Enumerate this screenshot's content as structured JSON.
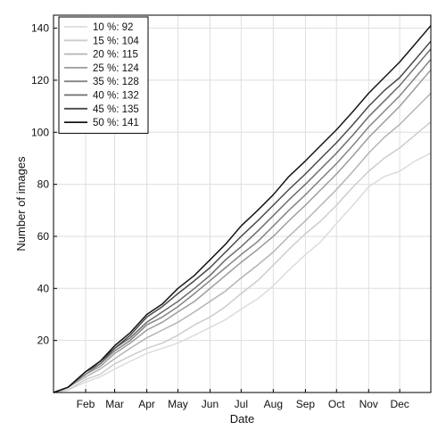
{
  "chart_data": {
    "type": "line",
    "xlabel": "Date",
    "ylabel": "Number of images",
    "x_ticks": [
      "Feb",
      "Mar",
      "Apr",
      "May",
      "Jun",
      "Jul",
      "Aug",
      "Sep",
      "Oct",
      "Nov",
      "Dec"
    ],
    "x_tick_days": [
      32,
      60,
      91,
      121,
      152,
      182,
      213,
      244,
      274,
      305,
      335
    ],
    "xlim": [
      1,
      365
    ],
    "ylim": [
      0,
      145
    ],
    "y_ticks": [
      20,
      40,
      60,
      80,
      100,
      120,
      140
    ],
    "grid": true,
    "legend_position": "top-left",
    "series": [
      {
        "name": "10 %: 92",
        "color": "#dcdcdc",
        "x": [
          1,
          15,
          32,
          46,
          60,
          75,
          91,
          106,
          121,
          137,
          152,
          167,
          182,
          198,
          213,
          228,
          244,
          259,
          274,
          290,
          305,
          320,
          335,
          350,
          365
        ],
        "y": [
          0,
          1,
          4,
          6,
          9,
          12,
          15,
          17,
          19,
          22,
          25,
          28,
          32,
          36,
          41,
          47,
          53,
          58,
          65,
          72,
          79,
          83,
          85,
          89,
          92
        ]
      },
      {
        "name": "15 %: 104",
        "color": "#cccccc",
        "x": [
          1,
          15,
          32,
          46,
          60,
          75,
          91,
          106,
          121,
          137,
          152,
          167,
          182,
          198,
          213,
          228,
          244,
          259,
          274,
          290,
          305,
          320,
          335,
          350,
          365
        ],
        "y": [
          0,
          1,
          5,
          7,
          11,
          14,
          17,
          19,
          22,
          26,
          29,
          33,
          38,
          43,
          49,
          55,
          61,
          66,
          72,
          79,
          85,
          90,
          94,
          99,
          104
        ]
      },
      {
        "name": "20 %: 115",
        "color": "#b4b4b4",
        "x": [
          1,
          15,
          32,
          46,
          60,
          75,
          91,
          106,
          121,
          137,
          152,
          167,
          182,
          198,
          213,
          228,
          244,
          259,
          274,
          290,
          305,
          320,
          335,
          350,
          365
        ],
        "y": [
          0,
          2,
          6,
          9,
          13,
          17,
          21,
          24,
          27,
          31,
          35,
          39,
          44,
          49,
          54,
          60,
          66,
          72,
          78,
          85,
          92,
          98,
          103,
          109,
          115
        ]
      },
      {
        "name": "25 %: 124",
        "color": "#9c9c9c",
        "x": [
          1,
          15,
          32,
          46,
          60,
          75,
          91,
          106,
          121,
          137,
          152,
          167,
          182,
          198,
          213,
          228,
          244,
          259,
          274,
          290,
          305,
          320,
          335,
          350,
          365
        ],
        "y": [
          0,
          2,
          7,
          10,
          15,
          19,
          24,
          27,
          31,
          35,
          40,
          45,
          50,
          55,
          60,
          66,
          72,
          78,
          84,
          91,
          98,
          104,
          110,
          117,
          124
        ]
      },
      {
        "name": "35 %: 128",
        "color": "#848484",
        "x": [
          1,
          15,
          32,
          46,
          60,
          75,
          91,
          106,
          121,
          137,
          152,
          167,
          182,
          198,
          213,
          228,
          244,
          259,
          274,
          290,
          305,
          320,
          335,
          350,
          365
        ],
        "y": [
          0,
          2,
          7,
          11,
          16,
          20,
          26,
          29,
          33,
          38,
          43,
          48,
          53,
          58,
          64,
          70,
          76,
          82,
          88,
          95,
          102,
          108,
          114,
          121,
          128
        ]
      },
      {
        "name": "40 %: 132",
        "color": "#6c6c6c",
        "x": [
          1,
          15,
          32,
          46,
          60,
          75,
          91,
          106,
          121,
          137,
          152,
          167,
          182,
          198,
          213,
          228,
          244,
          259,
          274,
          290,
          305,
          320,
          335,
          350,
          365
        ],
        "y": [
          0,
          2,
          8,
          11,
          17,
          21,
          27,
          31,
          35,
          40,
          45,
          51,
          56,
          62,
          68,
          74,
          80,
          86,
          92,
          99,
          106,
          112,
          118,
          125,
          132
        ]
      },
      {
        "name": "45 %: 135",
        "color": "#484848",
        "x": [
          1,
          15,
          32,
          46,
          60,
          75,
          91,
          106,
          121,
          137,
          152,
          167,
          182,
          198,
          213,
          228,
          244,
          259,
          274,
          290,
          305,
          320,
          335,
          350,
          365
        ],
        "y": [
          0,
          2,
          8,
          12,
          17,
          22,
          29,
          33,
          38,
          43,
          48,
          54,
          60,
          66,
          72,
          78,
          84,
          90,
          96,
          103,
          110,
          116,
          121,
          128,
          135
        ]
      },
      {
        "name": "50 %: 141",
        "color": "#151515",
        "x": [
          1,
          15,
          32,
          46,
          60,
          75,
          91,
          106,
          121,
          137,
          152,
          167,
          182,
          198,
          213,
          228,
          244,
          259,
          274,
          290,
          305,
          320,
          335,
          350,
          365
        ],
        "y": [
          0,
          2,
          8,
          12,
          18,
          23,
          30,
          34,
          40,
          45,
          51,
          57,
          64,
          70,
          76,
          83,
          89,
          95,
          101,
          108,
          115,
          121,
          127,
          134,
          141
        ]
      }
    ]
  }
}
